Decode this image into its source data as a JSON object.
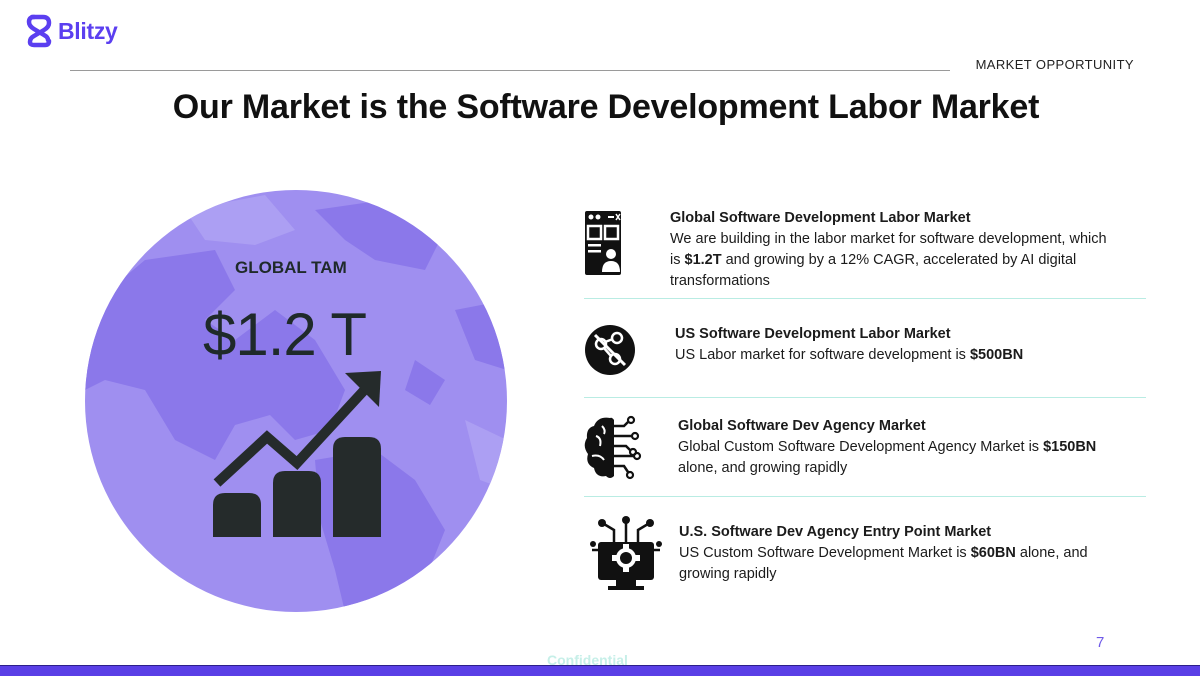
{
  "brand": {
    "name": "Blitzy",
    "color": "#5b3ff0"
  },
  "header": {
    "section_label": "MARKET OPPORTUNITY"
  },
  "title": "Our Market is the Software Development Labor Market",
  "globe": {
    "label": "GLOBAL TAM",
    "value": "$1.2 T",
    "color": "#9f8ff0"
  },
  "items": [
    {
      "icon": "webpage-user-icon",
      "title": "Global Software Development Labor Market",
      "body_1": "We are building in the labor market for software development, which is ",
      "bold_1": "$1.2T",
      "body_2": " and growing by a 12% CAGR, accelerated by AI digital transformations",
      "bold_2": "",
      "body_3": ""
    },
    {
      "icon": "no-network-icon",
      "title": "US Software Development Labor Market",
      "body_1": "US Labor market for software development is ",
      "bold_1": "$500BN",
      "body_2": "",
      "bold_2": "",
      "body_3": ""
    },
    {
      "icon": "ai-brain-icon",
      "title": "Global Software Dev Agency Market",
      "body_1": "Global Custom Software Development Agency Market is ",
      "bold_1": "$150BN",
      "body_2": " alone, and growing rapidly",
      "bold_2": "",
      "body_3": ""
    },
    {
      "icon": "monitor-gear-icon",
      "title": "U.S. Software Dev Agency Entry Point Market",
      "body_1": "US Custom Software Development Market is ",
      "bold_1": "$60BN",
      "body_2": " alone, and growing rapidly",
      "bold_2": "",
      "body_3": ""
    }
  ],
  "footer": {
    "page_number": "7",
    "confidential": "Confidential",
    "bar_color": "#5a3fe6"
  }
}
